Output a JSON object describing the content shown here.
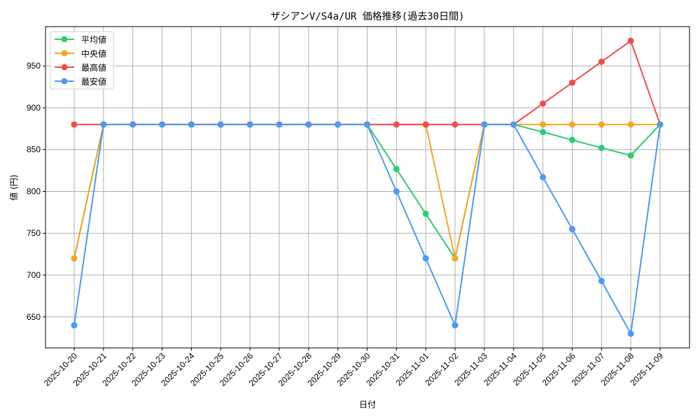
{
  "chart_data": {
    "type": "line",
    "title": "ザシアンV/S4a/UR 価格推移(過去30日間)",
    "xlabel": "日付",
    "ylabel": "値 (円)",
    "ylim": [
      613,
      997
    ],
    "yticks": [
      650,
      700,
      750,
      800,
      850,
      900,
      950
    ],
    "grid": true,
    "legend_position": "upper left",
    "categories": [
      "2025-10-20",
      "2025-10-21",
      "2025-10-22",
      "2025-10-23",
      "2025-10-24",
      "2025-10-25",
      "2025-10-26",
      "2025-10-27",
      "2025-10-28",
      "2025-10-29",
      "2025-10-30",
      "2025-10-31",
      "2025-11-01",
      "2025-11-02",
      "2025-11-03",
      "2025-11-04",
      "2025-11-05",
      "2025-11-06",
      "2025-11-07",
      "2025-11-08",
      "2025-11-09"
    ],
    "series": [
      {
        "name": "平均値",
        "color": "#2ecc71",
        "values": [
          720,
          880,
          880,
          880,
          880,
          880,
          880,
          880,
          880,
          880,
          880,
          826.7,
          773.3,
          720,
          880,
          880,
          871,
          861.5,
          852,
          843,
          880
        ]
      },
      {
        "name": "中央値",
        "color": "#f5a623",
        "values": [
          720,
          880,
          880,
          880,
          880,
          880,
          880,
          880,
          880,
          880,
          880,
          880,
          880,
          720,
          880,
          880,
          880,
          880,
          880,
          880,
          880
        ]
      },
      {
        "name": "最高値",
        "color": "#f14c4c",
        "values": [
          880,
          880,
          880,
          880,
          880,
          880,
          880,
          880,
          880,
          880,
          880,
          880,
          880,
          880,
          880,
          880,
          905,
          930,
          955,
          980,
          880
        ]
      },
      {
        "name": "最安値",
        "color": "#4c9bf1",
        "values": [
          640,
          880,
          880,
          880,
          880,
          880,
          880,
          880,
          880,
          880,
          880,
          800,
          720,
          640,
          880,
          880,
          817,
          755,
          693,
          630,
          880
        ]
      }
    ]
  }
}
